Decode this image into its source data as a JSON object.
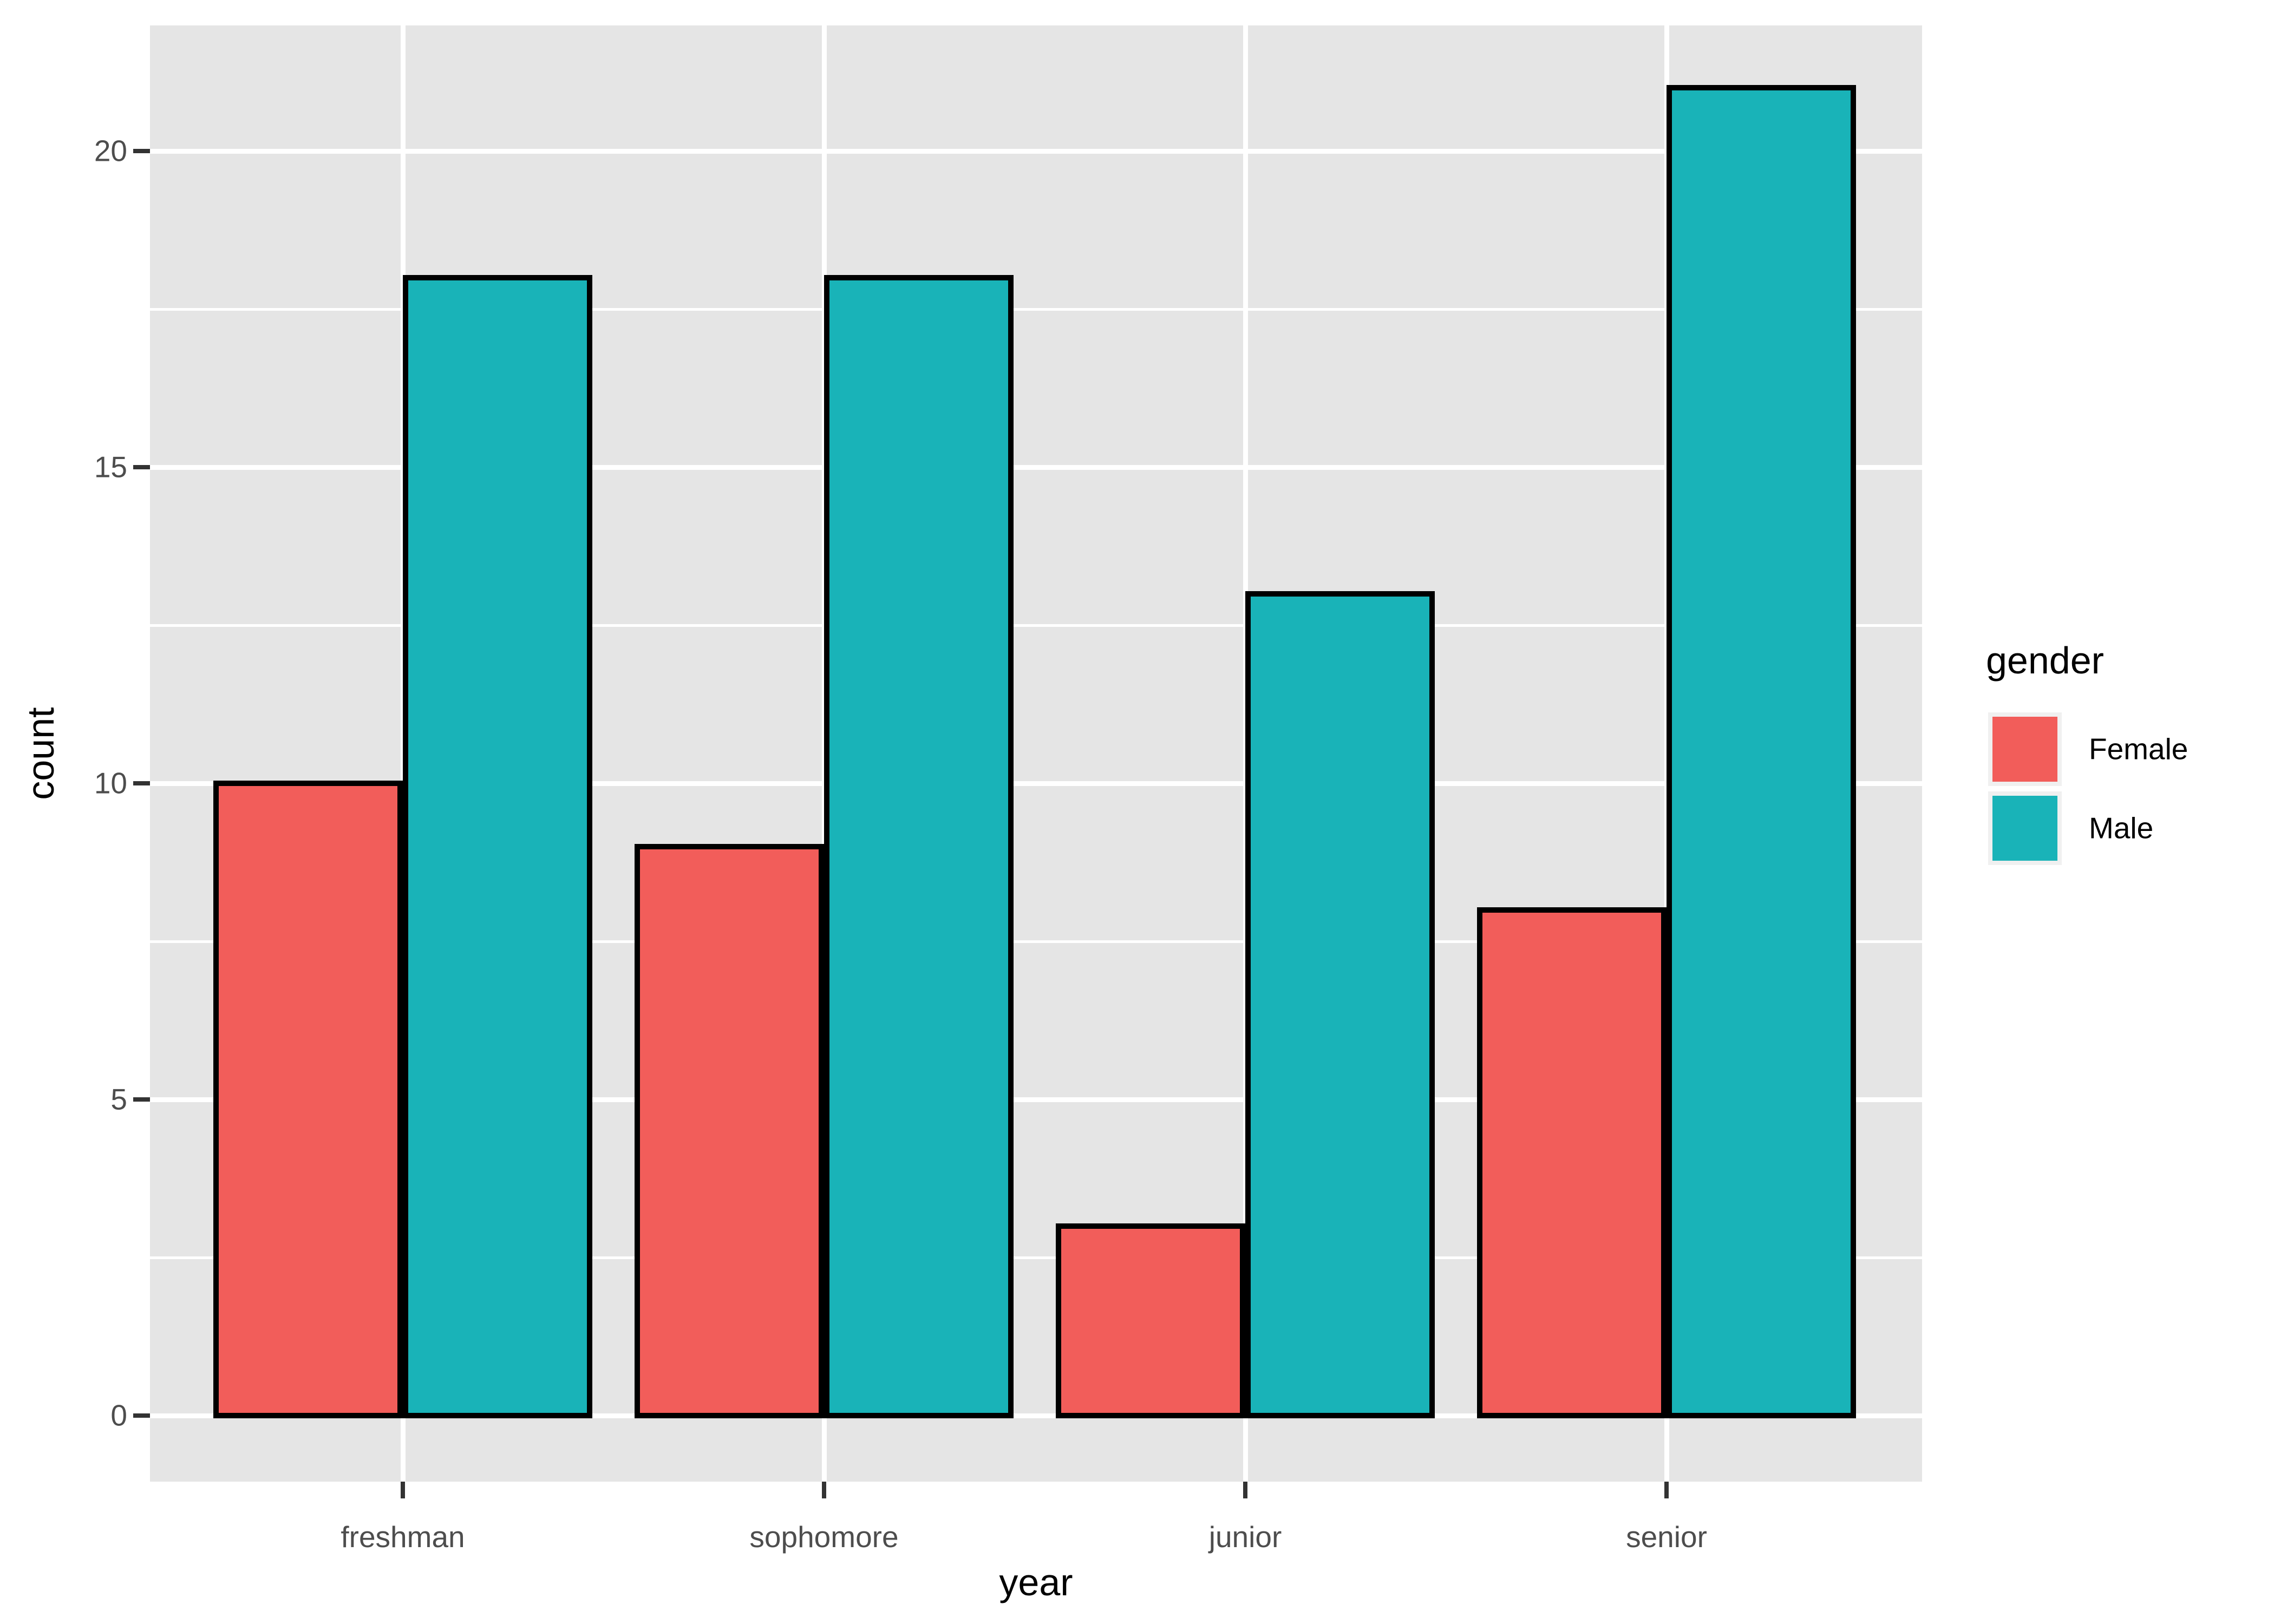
{
  "figure": {
    "background": "#ffffff",
    "panel_background": "#E5E5E5",
    "grid_color": "#ffffff",
    "tick_mark_color": "#333333",
    "tick_label_color": "#4D4D4D",
    "axis_title_color": "#000000",
    "legend_key_background": "#F0F0F0"
  },
  "legend": {
    "title": "gender",
    "entries": [
      {
        "label": "Female",
        "color": "#F25D5A"
      },
      {
        "label": "Male",
        "color": "#19B3B8"
      }
    ]
  },
  "chart_data": {
    "type": "bar",
    "subtype": "dodged",
    "title": "",
    "xlabel": "year",
    "ylabel": "count",
    "categories": [
      "freshman",
      "sophomore",
      "junior",
      "senior"
    ],
    "series": [
      {
        "name": "Female",
        "values": [
          10,
          9,
          3,
          8
        ],
        "color": "#F25D5A"
      },
      {
        "name": "Male",
        "values": [
          18,
          18,
          13,
          21
        ],
        "color": "#19B3B8"
      }
    ],
    "bar_outline_color": "#000000",
    "ylim": [
      0,
      22.05
    ],
    "y_major_ticks": [
      0,
      5,
      10,
      15,
      20
    ],
    "y_minor_ticks": [
      2.5,
      7.5,
      12.5,
      17.5
    ],
    "grid": true,
    "legend_position": "right",
    "legend_title": "gender"
  }
}
